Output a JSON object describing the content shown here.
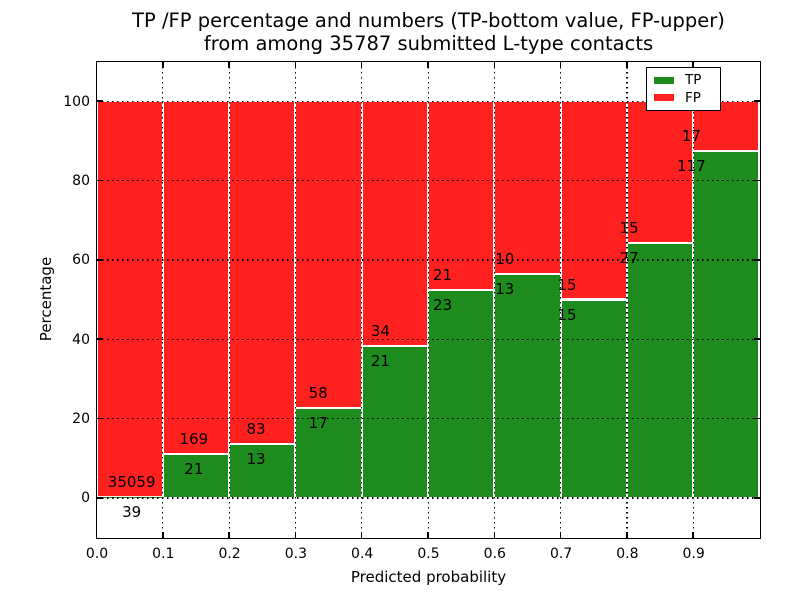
{
  "chart_data": {
    "type": "bar",
    "stacked": true,
    "normalized": "percentage",
    "title_line1": "TP /FP percentage and numbers (TP-bottom value, FP-upper)",
    "title_line2": "from among 35787 submitted L-type contacts",
    "xlabel": "Predicted probability",
    "ylabel": "Percentage",
    "xlim": [
      0.0,
      1.0
    ],
    "ylim": [
      -10,
      110
    ],
    "bin_width": 0.1,
    "grid": "dotted",
    "legend_position": "upper right",
    "x_tick_labels": [
      "0.0",
      "0.1",
      "0.2",
      "0.3",
      "0.4",
      "0.5",
      "0.6",
      "0.7",
      "0.8",
      "0.9"
    ],
    "y_tick_values": [
      0,
      20,
      40,
      60,
      80,
      100
    ],
    "y_tick_labels": [
      "0",
      "20",
      "40",
      "60",
      "80",
      "100"
    ],
    "total_contacts": 35787,
    "bins": [
      {
        "x_start": 0.0,
        "tp": 39,
        "fp": 35059,
        "tp_pct": 0.11
      },
      {
        "x_start": 0.1,
        "tp": 21,
        "fp": 169,
        "tp_pct": 11.05
      },
      {
        "x_start": 0.2,
        "tp": 13,
        "fp": 83,
        "tp_pct": 13.54
      },
      {
        "x_start": 0.3,
        "tp": 17,
        "fp": 58,
        "tp_pct": 22.67
      },
      {
        "x_start": 0.4,
        "tp": 21,
        "fp": 34,
        "tp_pct": 38.18
      },
      {
        "x_start": 0.5,
        "tp": 23,
        "fp": 21,
        "tp_pct": 52.27
      },
      {
        "x_start": 0.6,
        "tp": 13,
        "fp": 10,
        "tp_pct": 56.52
      },
      {
        "x_start": 0.7,
        "tp": 15,
        "fp": 15,
        "tp_pct": 50.0
      },
      {
        "x_start": 0.8,
        "tp": 27,
        "fp": 15,
        "tp_pct": 64.29
      },
      {
        "x_start": 0.9,
        "tp": 117,
        "fp": 17,
        "tp_pct": 87.31
      }
    ],
    "series": [
      {
        "name": "TP",
        "color": "#1e8b1e"
      },
      {
        "name": "FP",
        "color": "#ff2020"
      }
    ],
    "legend": {
      "items": [
        {
          "label": "TP",
          "color": "#1e8b1e"
        },
        {
          "label": "FP",
          "color": "#ff2020"
        }
      ]
    }
  }
}
